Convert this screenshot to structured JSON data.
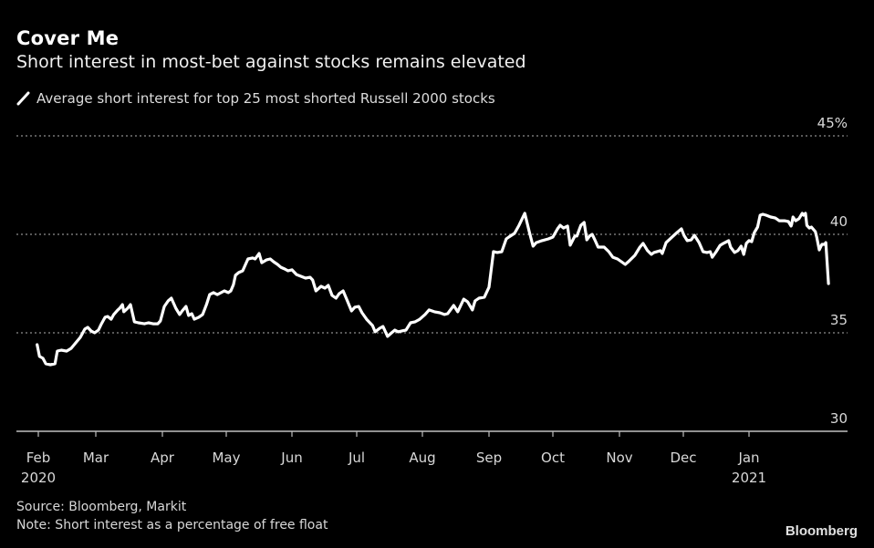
{
  "header": {
    "title": "Cover Me",
    "subtitle": "Short interest in most-bet against stocks remains elevated"
  },
  "legend": {
    "icon": "line-swatch-icon",
    "label": "Average short interest for top 25 most shorted Russell 2000 stocks"
  },
  "footer": {
    "source": "Source: Bloomberg, Markit",
    "note": "Note: Short interest as a percentage of free float",
    "brand": "Bloomberg"
  },
  "colors": {
    "background": "#000000",
    "line": "#ffffff",
    "grid": "#8c8c8c",
    "axis": "#bfbfbf",
    "text": "#d8d8d8"
  },
  "chart_data": {
    "type": "line",
    "title": "Cover Me",
    "subtitle": "Short interest in most-bet against stocks remains elevated",
    "xlabel": "",
    "ylabel": "",
    "x_unit": "months since Feb 2020",
    "xlim": [
      -0.33,
      12.5
    ],
    "ylim": [
      30,
      45
    ],
    "y_ticks": [
      {
        "value": 30,
        "label": "30"
      },
      {
        "value": 35,
        "label": "35"
      },
      {
        "value": 40,
        "label": "40"
      },
      {
        "value": 45,
        "label": "45%"
      }
    ],
    "x_ticks": [
      {
        "value": 0,
        "label": "Feb",
        "sub": "2020"
      },
      {
        "value": 1,
        "label": "Mar",
        "sub": ""
      },
      {
        "value": 2,
        "label": "Apr",
        "sub": ""
      },
      {
        "value": 3,
        "label": "May",
        "sub": ""
      },
      {
        "value": 4,
        "label": "Jun",
        "sub": ""
      },
      {
        "value": 5,
        "label": "Jul",
        "sub": ""
      },
      {
        "value": 6,
        "label": "Aug",
        "sub": ""
      },
      {
        "value": 7,
        "label": "Sep",
        "sub": ""
      },
      {
        "value": 8,
        "label": "Oct",
        "sub": ""
      },
      {
        "value": 9,
        "label": "Nov",
        "sub": ""
      },
      {
        "value": 10,
        "label": "Dec",
        "sub": ""
      },
      {
        "value": 11,
        "label": "Jan",
        "sub": "2021"
      }
    ],
    "grid": true,
    "grid_values": [
      35,
      40,
      45
    ],
    "legend_position": "top-left",
    "series": [
      {
        "name": "Average short interest for top 25 most shorted Russell 2000 stocks",
        "points": [
          [
            -0.02,
            34.4
          ],
          [
            0.02,
            33.8
          ],
          [
            0.08,
            33.71
          ],
          [
            0.13,
            33.43
          ],
          [
            0.21,
            33.38
          ],
          [
            0.29,
            33.43
          ],
          [
            0.33,
            34.07
          ],
          [
            0.4,
            34.12
          ],
          [
            0.49,
            34.07
          ],
          [
            0.57,
            34.21
          ],
          [
            0.65,
            34.49
          ],
          [
            0.73,
            34.77
          ],
          [
            0.81,
            35.19
          ],
          [
            0.86,
            35.28
          ],
          [
            0.92,
            35.09
          ],
          [
            0.98,
            35.0
          ],
          [
            1.04,
            35.14
          ],
          [
            1.08,
            35.42
          ],
          [
            1.14,
            35.79
          ],
          [
            1.18,
            35.83
          ],
          [
            1.23,
            35.69
          ],
          [
            1.27,
            35.93
          ],
          [
            1.33,
            36.16
          ],
          [
            1.36,
            36.25
          ],
          [
            1.4,
            36.43
          ],
          [
            1.42,
            36.07
          ],
          [
            1.48,
            36.25
          ],
          [
            1.52,
            36.43
          ],
          [
            1.58,
            35.56
          ],
          [
            1.64,
            35.51
          ],
          [
            1.73,
            35.46
          ],
          [
            1.79,
            35.51
          ],
          [
            1.86,
            35.46
          ],
          [
            1.93,
            35.46
          ],
          [
            1.97,
            35.6
          ],
          [
            2.03,
            36.34
          ],
          [
            2.09,
            36.62
          ],
          [
            2.14,
            36.76
          ],
          [
            2.21,
            36.25
          ],
          [
            2.27,
            35.93
          ],
          [
            2.31,
            36.11
          ],
          [
            2.37,
            36.34
          ],
          [
            2.41,
            35.88
          ],
          [
            2.46,
            35.97
          ],
          [
            2.5,
            35.69
          ],
          [
            2.57,
            35.79
          ],
          [
            2.63,
            35.93
          ],
          [
            2.69,
            36.43
          ],
          [
            2.74,
            36.94
          ],
          [
            2.8,
            37.04
          ],
          [
            2.86,
            36.94
          ],
          [
            2.97,
            37.13
          ],
          [
            3.03,
            37.04
          ],
          [
            3.07,
            37.13
          ],
          [
            3.11,
            37.45
          ],
          [
            3.14,
            37.92
          ],
          [
            3.19,
            38.06
          ],
          [
            3.25,
            38.15
          ],
          [
            3.33,
            38.75
          ],
          [
            3.4,
            38.8
          ],
          [
            3.44,
            38.75
          ],
          [
            3.5,
            39.03
          ],
          [
            3.54,
            38.56
          ],
          [
            3.61,
            38.7
          ],
          [
            3.67,
            38.75
          ],
          [
            3.72,
            38.61
          ],
          [
            3.78,
            38.47
          ],
          [
            3.83,
            38.33
          ],
          [
            3.89,
            38.24
          ],
          [
            3.94,
            38.15
          ],
          [
            4.0,
            38.2
          ],
          [
            4.07,
            37.96
          ],
          [
            4.21,
            37.78
          ],
          [
            4.28,
            37.82
          ],
          [
            4.32,
            37.68
          ],
          [
            4.37,
            37.13
          ],
          [
            4.37,
            37.13
          ],
          [
            4.45,
            37.36
          ],
          [
            4.51,
            37.27
          ],
          [
            4.56,
            37.41
          ],
          [
            4.62,
            36.9
          ],
          [
            4.68,
            36.76
          ],
          [
            4.73,
            36.99
          ],
          [
            4.79,
            37.13
          ],
          [
            4.85,
            36.67
          ],
          [
            4.92,
            36.11
          ],
          [
            4.97,
            36.3
          ],
          [
            5.03,
            36.34
          ],
          [
            5.08,
            36.02
          ],
          [
            5.15,
            35.69
          ],
          [
            5.24,
            35.37
          ],
          [
            5.28,
            35.05
          ],
          [
            5.35,
            35.23
          ],
          [
            5.4,
            35.32
          ],
          [
            5.47,
            34.82
          ],
          [
            5.53,
            35.0
          ],
          [
            5.58,
            35.14
          ],
          [
            5.63,
            35.05
          ],
          [
            5.68,
            35.09
          ],
          [
            5.75,
            35.14
          ],
          [
            5.82,
            35.51
          ],
          [
            5.89,
            35.56
          ],
          [
            5.96,
            35.69
          ],
          [
            6.04,
            35.93
          ],
          [
            6.1,
            36.16
          ],
          [
            6.18,
            36.07
          ],
          [
            6.26,
            36.02
          ],
          [
            6.33,
            35.93
          ],
          [
            6.38,
            35.97
          ],
          [
            6.47,
            36.39
          ],
          [
            6.53,
            36.07
          ],
          [
            6.62,
            36.71
          ],
          [
            6.68,
            36.57
          ],
          [
            6.75,
            36.16
          ],
          [
            6.79,
            36.62
          ],
          [
            6.85,
            36.76
          ],
          [
            6.93,
            36.81
          ],
          [
            7.0,
            37.32
          ],
          [
            7.07,
            39.12
          ],
          [
            7.13,
            39.08
          ],
          [
            7.2,
            39.12
          ],
          [
            7.27,
            39.77
          ],
          [
            7.31,
            39.86
          ],
          [
            7.4,
            40.05
          ],
          [
            7.47,
            40.46
          ],
          [
            7.56,
            41.07
          ],
          [
            7.63,
            40.14
          ],
          [
            7.69,
            39.4
          ],
          [
            7.74,
            39.58
          ],
          [
            7.83,
            39.68
          ],
          [
            7.93,
            39.77
          ],
          [
            8.0,
            39.86
          ],
          [
            8.07,
            40.28
          ],
          [
            8.11,
            40.46
          ],
          [
            8.16,
            40.32
          ],
          [
            8.22,
            40.42
          ],
          [
            8.26,
            39.45
          ],
          [
            8.33,
            39.91
          ],
          [
            8.36,
            39.91
          ],
          [
            8.42,
            40.46
          ],
          [
            8.47,
            40.6
          ],
          [
            8.51,
            39.72
          ],
          [
            8.55,
            39.91
          ],
          [
            8.59,
            40.0
          ],
          [
            8.63,
            39.72
          ],
          [
            8.68,
            39.35
          ],
          [
            8.77,
            39.35
          ],
          [
            8.84,
            39.12
          ],
          [
            8.9,
            38.84
          ],
          [
            8.97,
            38.75
          ],
          [
            9.03,
            38.61
          ],
          [
            9.09,
            38.47
          ],
          [
            9.14,
            38.61
          ],
          [
            9.24,
            38.93
          ],
          [
            9.32,
            39.35
          ],
          [
            9.37,
            39.54
          ],
          [
            9.44,
            39.17
          ],
          [
            9.5,
            38.98
          ],
          [
            9.54,
            39.08
          ],
          [
            9.64,
            39.17
          ],
          [
            9.67,
            39.03
          ],
          [
            9.73,
            39.58
          ],
          [
            9.84,
            39.91
          ],
          [
            9.9,
            40.09
          ],
          [
            9.97,
            40.28
          ],
          [
            10.01,
            39.95
          ],
          [
            10.06,
            39.68
          ],
          [
            10.12,
            39.72
          ],
          [
            10.17,
            39.95
          ],
          [
            10.24,
            39.58
          ],
          [
            10.3,
            39.12
          ],
          [
            10.36,
            39.08
          ],
          [
            10.41,
            39.12
          ],
          [
            10.44,
            38.84
          ],
          [
            10.5,
            39.12
          ],
          [
            10.56,
            39.44
          ],
          [
            10.61,
            39.54
          ],
          [
            10.69,
            39.68
          ],
          [
            10.72,
            39.35
          ],
          [
            10.78,
            39.08
          ],
          [
            10.83,
            39.17
          ],
          [
            10.88,
            39.4
          ],
          [
            10.92,
            38.98
          ],
          [
            10.96,
            39.54
          ],
          [
            11.0,
            39.68
          ],
          [
            11.04,
            39.63
          ],
          [
            11.08,
            40.09
          ],
          [
            11.13,
            40.37
          ],
          [
            11.17,
            40.97
          ],
          [
            11.21,
            41.02
          ],
          [
            11.26,
            40.97
          ],
          [
            11.33,
            40.88
          ],
          [
            11.4,
            40.83
          ],
          [
            11.46,
            40.69
          ],
          [
            11.54,
            40.69
          ],
          [
            11.6,
            40.65
          ],
          [
            11.64,
            40.42
          ],
          [
            11.65,
            40.51
          ],
          [
            11.67,
            40.88
          ],
          [
            11.71,
            40.69
          ],
          [
            11.76,
            40.79
          ],
          [
            11.81,
            41.07
          ],
          [
            11.83,
            40.97
          ],
          [
            11.86,
            41.07
          ],
          [
            11.88,
            40.46
          ],
          [
            11.92,
            40.32
          ],
          [
            11.95,
            40.37
          ],
          [
            12.01,
            40.14
          ],
          [
            12.03,
            39.86
          ],
          [
            12.07,
            39.21
          ],
          [
            12.11,
            39.49
          ],
          [
            12.15,
            39.49
          ],
          [
            12.17,
            39.58
          ],
          [
            12.21,
            37.5
          ]
        ]
      }
    ]
  }
}
